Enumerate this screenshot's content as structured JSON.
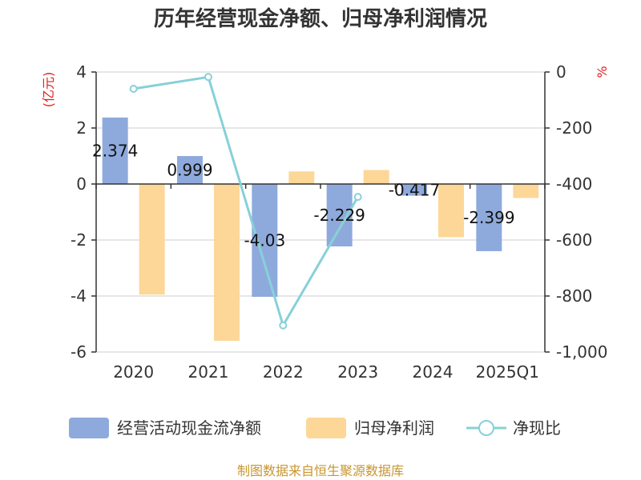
{
  "chart_data": {
    "type": "bar",
    "title": "历年经营现金净额、归母净利润情况",
    "categories": [
      "2020",
      "2021",
      "2022",
      "2023",
      "2024",
      "2025Q1"
    ],
    "left_axis": {
      "unit": "(亿元)",
      "ylim": [
        -6,
        4
      ],
      "ticks": [
        4,
        2,
        0,
        -2,
        -4,
        -6
      ]
    },
    "right_axis": {
      "unit": "%",
      "ylim": [
        -1000,
        0
      ],
      "ticks": [
        "0",
        "-200",
        "-400",
        "-600",
        "-800",
        "-1,000"
      ]
    },
    "series": [
      {
        "name": "经营活动现金流净额",
        "type": "bar",
        "axis": "left",
        "color": "#8eaadc",
        "values": [
          2.374,
          0.999,
          -4.03,
          -2.229,
          -0.417,
          -2.399
        ],
        "labels": [
          "2.374",
          "0.999",
          "-4.03",
          "-2.229",
          "-0.417",
          "-2.399"
        ]
      },
      {
        "name": "归母净利润",
        "type": "bar",
        "axis": "left",
        "color": "#fdd797",
        "values": [
          -3.95,
          -5.6,
          0.45,
          0.5,
          -1.9,
          -0.5
        ]
      },
      {
        "name": "净现比",
        "type": "line",
        "axis": "right",
        "color": "#88d0d8",
        "values": [
          -60,
          -18,
          -905,
          -446,
          null,
          null
        ]
      }
    ],
    "source": "制图数据来自恒生聚源数据库"
  }
}
